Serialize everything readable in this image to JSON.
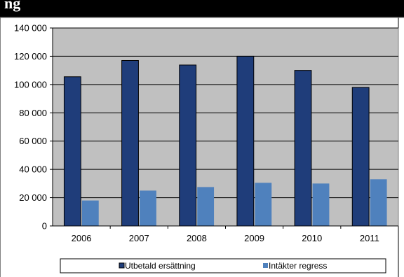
{
  "header_fragment": "ng",
  "chart_data": {
    "type": "bar",
    "categories": [
      "2006",
      "2007",
      "2008",
      "2009",
      "2010",
      "2011"
    ],
    "series": [
      {
        "name": "Utbetald ersättning",
        "values": [
          105500,
          117000,
          113800,
          120000,
          110000,
          98000
        ],
        "color": "#1f3d7a"
      },
      {
        "name": "Intäkter regress",
        "values": [
          18000,
          25000,
          27500,
          30500,
          30000,
          33000
        ],
        "color": "#4f81bd"
      }
    ],
    "ylim": [
      0,
      140000
    ],
    "yticks": [
      0,
      20000,
      40000,
      60000,
      80000,
      100000,
      120000,
      140000
    ],
    "ytick_labels": [
      "0",
      "20 000",
      "40 000",
      "60 000",
      "80 000",
      "100 000",
      "120 000",
      "140 000"
    ],
    "title": "",
    "xlabel": "",
    "ylabel": "",
    "grid": true,
    "legend_position": "bottom",
    "plot_background": "#c0c0c0"
  }
}
